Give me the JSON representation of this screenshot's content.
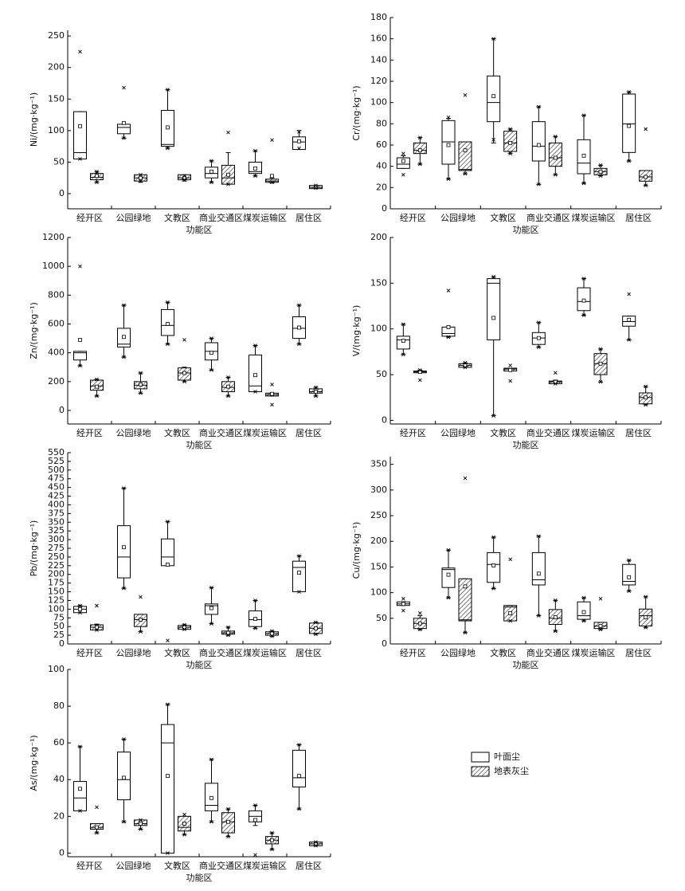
{
  "chart_data": [
    {
      "type": "box",
      "ylabel": "Ni/(mg·kg⁻¹)",
      "xlabel": "功能区",
      "categories": [
        "经开区",
        "公园绿地",
        "文教区",
        "商业交通区",
        "煤炭运输区",
        "居住区"
      ],
      "ylim": [
        -24,
        259
      ],
      "yticks": [
        0,
        50,
        100,
        150,
        200,
        250
      ],
      "series": [
        {
          "color": "#ffffff",
          "low": [
            55,
            88,
            72,
            18,
            28,
            72
          ],
          "q1": [
            55,
            95,
            75,
            25,
            32,
            70
          ],
          "median": [
            65,
            105,
            78,
            32,
            35,
            82
          ],
          "q3": [
            130,
            110,
            132,
            42,
            50,
            90
          ],
          "high": [
            130,
            110,
            165,
            52,
            68,
            100
          ],
          "mean": [
            107,
            112,
            105,
            35,
            40,
            83
          ],
          "min": [
            55,
            88,
            72,
            18,
            28,
            72
          ],
          "max": [
            225,
            168,
            165,
            52,
            68,
            98
          ]
        },
        {
          "color": "#333333",
          "hatch": true,
          "low": [
            18,
            18,
            20,
            15,
            17,
            8
          ],
          "q1": [
            22,
            20,
            22,
            15,
            18,
            8
          ],
          "median": [
            26,
            25,
            25,
            25,
            20,
            10
          ],
          "q3": [
            32,
            30,
            30,
            45,
            23,
            13
          ],
          "high": [
            35,
            30,
            30,
            65,
            25,
            13
          ],
          "mean": [
            28,
            25,
            25,
            30,
            28,
            11
          ],
          "min": [
            18,
            20,
            22,
            15,
            18,
            9
          ],
          "max": [
            35,
            30,
            28,
            97,
            85,
            13
          ]
        }
      ]
    },
    {
      "type": "box",
      "ylabel": "Cr/(mg·kg⁻¹)",
      "xlabel": "功能区",
      "categories": [
        "经开区",
        "公园绿地",
        "文教区",
        "商业交通区",
        "煤炭运输区",
        "居住区"
      ],
      "ylim": [
        0,
        180
      ],
      "yticks": [
        0,
        20,
        40,
        60,
        80,
        100,
        120,
        140,
        160,
        180
      ],
      "series": [
        {
          "color": "#ffffff",
          "low": [
            38,
            28,
            62,
            23,
            24,
            45
          ],
          "q1": [
            38,
            42,
            82,
            45,
            33,
            53
          ],
          "median": [
            42,
            63,
            100,
            59,
            43,
            80
          ],
          "q3": [
            48,
            83,
            125,
            82,
            65,
            108
          ],
          "high": [
            50,
            85,
            160,
            96,
            88,
            110
          ],
          "mean": [
            45,
            60,
            106,
            60,
            50,
            78
          ],
          "min": [
            32,
            28,
            65,
            23,
            24,
            45
          ],
          "max": [
            52,
            86,
            160,
            96,
            88,
            110
          ]
        },
        {
          "color": "#333333",
          "hatch": true,
          "low": [
            42,
            33,
            52,
            32,
            31,
            22
          ],
          "q1": [
            52,
            36,
            54,
            40,
            32,
            26
          ],
          "median": [
            55,
            37,
            62,
            48,
            35,
            30
          ],
          "q3": [
            62,
            63,
            73,
            62,
            38,
            36
          ],
          "high": [
            67,
            63,
            75,
            68,
            41,
            36
          ],
          "mean": [
            55,
            55,
            62,
            48,
            35,
            30
          ],
          "min": [
            42,
            33,
            52,
            32,
            31,
            22
          ],
          "max": [
            67,
            107,
            75,
            68,
            41,
            75
          ]
        }
      ]
    },
    {
      "type": "box",
      "ylabel": "Zn/(mg·kg⁻¹)",
      "xlabel": "功能区",
      "categories": [
        "经开区",
        "公园绿地",
        "文教区",
        "商业交通区",
        "煤炭运输区",
        "居住区"
      ],
      "ylim": [
        -94,
        1200
      ],
      "yticks": [
        0,
        200,
        400,
        600,
        800,
        1000,
        1200
      ],
      "series": [
        {
          "color": "#ffffff",
          "low": [
            310,
            370,
            460,
            280,
            130,
            460
          ],
          "q1": [
            350,
            440,
            520,
            350,
            130,
            500
          ],
          "median": [
            400,
            460,
            590,
            410,
            170,
            570
          ],
          "q3": [
            410,
            570,
            700,
            470,
            385,
            650
          ],
          "high": [
            410,
            730,
            750,
            500,
            450,
            730
          ],
          "mean": [
            490,
            510,
            600,
            400,
            245,
            575
          ],
          "min": [
            310,
            370,
            460,
            280,
            130,
            460
          ],
          "max": [
            1000,
            730,
            750,
            500,
            450,
            730
          ]
        },
        {
          "color": "#333333",
          "hatch": true,
          "low": [
            100,
            120,
            200,
            100,
            100,
            100
          ],
          "q1": [
            140,
            150,
            210,
            130,
            100,
            120
          ],
          "median": [
            170,
            175,
            260,
            160,
            110,
            130
          ],
          "q3": [
            210,
            200,
            295,
            200,
            120,
            150
          ],
          "high": [
            215,
            260,
            300,
            230,
            120,
            160
          ],
          "mean": [
            165,
            180,
            260,
            165,
            115,
            130
          ],
          "min": [
            100,
            120,
            200,
            100,
            40,
            100
          ],
          "max": [
            215,
            260,
            490,
            230,
            180,
            160
          ]
        }
      ]
    },
    {
      "type": "box",
      "ylabel": "V/(mg·kg⁻¹)",
      "xlabel": "功能区",
      "categories": [
        "经开区",
        "公园绿地",
        "文教区",
        "商业交通区",
        "煤炭运输区",
        "居住区"
      ],
      "ylim": [
        -4,
        200
      ],
      "yticks": [
        0,
        50,
        100,
        150,
        200
      ],
      "series": [
        {
          "color": "#ffffff",
          "low": [
            72,
            91,
            5,
            80,
            115,
            88
          ],
          "q1": [
            78,
            92,
            88,
            83,
            120,
            103
          ],
          "median": [
            88,
            95,
            150,
            90,
            130,
            108
          ],
          "q3": [
            92,
            102,
            155,
            96,
            145,
            114
          ],
          "high": [
            105,
            102,
            157,
            107,
            155,
            114
          ],
          "mean": [
            87,
            102,
            112,
            90,
            131,
            110
          ],
          "min": [
            72,
            91,
            5,
            80,
            115,
            88
          ],
          "max": [
            105,
            142,
            157,
            107,
            155,
            138
          ]
        },
        {
          "color": "#333333",
          "hatch": true,
          "low": [
            52,
            58,
            54,
            40,
            42,
            17
          ],
          "q1": [
            52,
            58,
            54,
            40,
            50,
            18
          ],
          "median": [
            53,
            60,
            56,
            42,
            62,
            25
          ],
          "q3": [
            54,
            62,
            57,
            43,
            73,
            30
          ],
          "high": [
            55,
            63,
            57,
            44,
            78,
            37
          ],
          "mean": [
            53,
            60,
            55,
            42,
            62,
            25
          ],
          "min": [
            44,
            58,
            43,
            40,
            42,
            17
          ],
          "max": [
            55,
            63,
            60,
            52,
            78,
            37
          ]
        }
      ]
    },
    {
      "type": "box",
      "ylabel": "Pb/(mg·kg⁻¹)",
      "xlabel": "功能区",
      "categories": [
        "经开区",
        "公园绿地",
        "文教区",
        "商业交通区",
        "煤炭运输区",
        "居住区"
      ],
      "ylim": [
        0,
        550
      ],
      "yticks": [
        0,
        25,
        50,
        75,
        100,
        125,
        150,
        175,
        200,
        225,
        250,
        275,
        300,
        325,
        350,
        375,
        400,
        425,
        450,
        475,
        500,
        525,
        550
      ],
      "series": [
        {
          "color": "#ffffff",
          "low": [
            90,
            160,
            225,
            58,
            45,
            150
          ],
          "q1": [
            90,
            190,
            225,
            85,
            50,
            150
          ],
          "median": [
            100,
            250,
            250,
            110,
            70,
            220
          ],
          "q3": [
            108,
            340,
            302,
            115,
            95,
            238
          ],
          "high": [
            110,
            448,
            352,
            162,
            125,
            253
          ],
          "mean": [
            100,
            278,
            228,
            103,
            72,
            205
          ],
          "min": [
            90,
            160,
            10,
            58,
            45,
            150
          ],
          "max": [
            110,
            448,
            352,
            162,
            125,
            253
          ]
        },
        {
          "color": "#333333",
          "hatch": true,
          "low": [
            40,
            35,
            42,
            25,
            22,
            28
          ],
          "q1": [
            40,
            50,
            42,
            28,
            25,
            30
          ],
          "median": [
            48,
            70,
            48,
            32,
            30,
            45
          ],
          "q3": [
            55,
            85,
            53,
            37,
            35,
            60
          ],
          "high": [
            57,
            85,
            55,
            48,
            37,
            62
          ],
          "mean": [
            48,
            70,
            48,
            32,
            30,
            45
          ],
          "min": [
            40,
            35,
            42,
            25,
            22,
            28
          ],
          "max": [
            110,
            135,
            55,
            48,
            37,
            62
          ]
        }
      ]
    },
    {
      "type": "box",
      "ylabel": "Cu/(mg·kg⁻¹)",
      "xlabel": "功能区",
      "categories": [
        "经开区",
        "公园绿地",
        "文教区",
        "商业交通区",
        "煤炭运输区",
        "居住区"
      ],
      "ylim": [
        0,
        365
      ],
      "yticks": [
        0,
        50,
        100,
        150,
        200,
        250,
        300,
        350
      ],
      "series": [
        {
          "color": "#ffffff",
          "low": [
            75,
            90,
            108,
            55,
            45,
            103
          ],
          "q1": [
            75,
            110,
            120,
            115,
            48,
            115
          ],
          "median": [
            78,
            145,
            155,
            125,
            55,
            122
          ],
          "q3": [
            82,
            148,
            178,
            178,
            82,
            155
          ],
          "high": [
            82,
            183,
            208,
            210,
            90,
            163
          ],
          "mean": [
            78,
            135,
            153,
            137,
            62,
            130
          ],
          "min": [
            65,
            90,
            108,
            55,
            45,
            103
          ],
          "max": [
            88,
            183,
            208,
            210,
            90,
            163
          ]
        },
        {
          "color": "#333333",
          "hatch": true,
          "low": [
            28,
            22,
            45,
            25,
            28,
            32
          ],
          "q1": [
            30,
            45,
            45,
            38,
            30,
            35
          ],
          "median": [
            40,
            47,
            72,
            50,
            35,
            55
          ],
          "q3": [
            50,
            127,
            75,
            67,
            42,
            68
          ],
          "high": [
            55,
            127,
            75,
            85,
            42,
            92
          ],
          "mean": [
            40,
            112,
            60,
            52,
            35,
            52
          ],
          "min": [
            28,
            22,
            45,
            25,
            28,
            32
          ],
          "max": [
            60,
            323,
            165,
            85,
            88,
            92
          ]
        }
      ]
    },
    {
      "type": "box",
      "ylabel": "As/(mg·kg⁻¹)",
      "xlabel": "功能区",
      "categories": [
        "经开区",
        "公园绿地",
        "文教区",
        "商业交通区",
        "煤炭运输区",
        "居住区"
      ],
      "ylim": [
        -2,
        100
      ],
      "yticks": [
        0,
        20,
        40,
        60,
        80,
        100
      ],
      "series": [
        {
          "name": "叶面尘",
          "color": "#ffffff",
          "low": [
            23,
            17,
            0,
            17,
            15,
            24
          ],
          "q1": [
            23,
            29,
            0,
            23,
            17,
            36
          ],
          "median": [
            30,
            40,
            60,
            26,
            20,
            41
          ],
          "q3": [
            39,
            55,
            70,
            38,
            23,
            56
          ],
          "high": [
            58,
            62,
            81,
            51,
            26,
            59
          ],
          "mean": [
            35,
            41,
            42,
            30,
            18,
            42
          ],
          "min": [
            23,
            17,
            0,
            17,
            -1,
            24
          ],
          "max": [
            58,
            62,
            81,
            51,
            26,
            59
          ]
        },
        {
          "name": "地表灰尘",
          "color": "#333333",
          "hatch": true,
          "low": [
            11,
            13,
            10,
            9,
            2,
            4
          ],
          "q1": [
            13,
            15,
            12,
            11,
            5,
            4
          ],
          "median": [
            14,
            16,
            14,
            17,
            7,
            5
          ],
          "q3": [
            16,
            18,
            20,
            22,
            9,
            6
          ],
          "high": [
            16,
            18,
            20,
            24,
            11,
            6
          ],
          "mean": [
            14,
            16,
            16,
            17,
            7,
            5
          ],
          "min": [
            11,
            13,
            10,
            9,
            2,
            4
          ],
          "max": [
            25,
            18,
            21,
            24,
            11,
            6
          ]
        }
      ]
    }
  ]
}
